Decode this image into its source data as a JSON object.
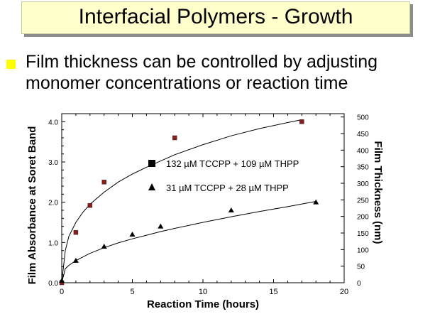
{
  "slide": {
    "title": "Interfacial Polymers - Growth",
    "bullet": "Film thickness can be controlled by adjusting monomer concentrations or reaction time"
  },
  "chart_data": {
    "type": "scatter",
    "xlabel": "Reaction Time (hours)",
    "ylabel": "Film Absorbance at Soret Band",
    "y2label": "Film Thickness (nm)",
    "xlim": [
      0,
      20
    ],
    "ylim": [
      0,
      4.2
    ],
    "y2lim": [
      0,
      510
    ],
    "x_ticks": [
      "0",
      "5",
      "10",
      "15",
      "20"
    ],
    "y_ticks": [
      "0.0",
      "1.0",
      "2.0",
      "3.0",
      "4.0"
    ],
    "y2_ticks": [
      "0",
      "50",
      "100",
      "150",
      "200",
      "250",
      "300",
      "350",
      "400",
      "450",
      "500"
    ],
    "grid": false,
    "legend_position": "center",
    "series": [
      {
        "name": "132 µM TCCPP + 109 µM THPP",
        "marker": "square",
        "color": "#8b1a1a",
        "x": [
          0,
          1,
          2,
          3,
          8,
          17
        ],
        "y": [
          0.0,
          1.25,
          1.92,
          2.5,
          3.6,
          4.0
        ],
        "fit_curve": [
          [
            0,
            0
          ],
          [
            0.25,
            0.8
          ],
          [
            0.5,
            1.15
          ],
          [
            1,
            1.5
          ],
          [
            1.5,
            1.75
          ],
          [
            2,
            1.95
          ],
          [
            3,
            2.25
          ],
          [
            4,
            2.5
          ],
          [
            5,
            2.7
          ],
          [
            6,
            2.87
          ],
          [
            8,
            3.18
          ],
          [
            10,
            3.43
          ],
          [
            12,
            3.65
          ],
          [
            14,
            3.83
          ],
          [
            16,
            3.98
          ],
          [
            17,
            4.05
          ]
        ]
      },
      {
        "name": "31 µM TCCPP  +  28 µM THPP",
        "marker": "triangle",
        "color": "#000000",
        "x": [
          0,
          1,
          3,
          5,
          7,
          12,
          18
        ],
        "y": [
          0.05,
          0.55,
          0.9,
          1.2,
          1.4,
          1.8,
          2.0
        ],
        "fit_curve": [
          [
            0,
            0
          ],
          [
            0.25,
            0.35
          ],
          [
            0.5,
            0.43
          ],
          [
            1,
            0.55
          ],
          [
            2,
            0.73
          ],
          [
            3,
            0.87
          ],
          [
            4,
            0.99
          ],
          [
            5,
            1.09
          ],
          [
            6,
            1.18
          ],
          [
            7,
            1.27
          ],
          [
            8,
            1.35
          ],
          [
            10,
            1.5
          ],
          [
            12,
            1.64
          ],
          [
            14,
            1.77
          ],
          [
            16,
            1.89
          ],
          [
            18,
            2.02
          ]
        ]
      }
    ]
  }
}
